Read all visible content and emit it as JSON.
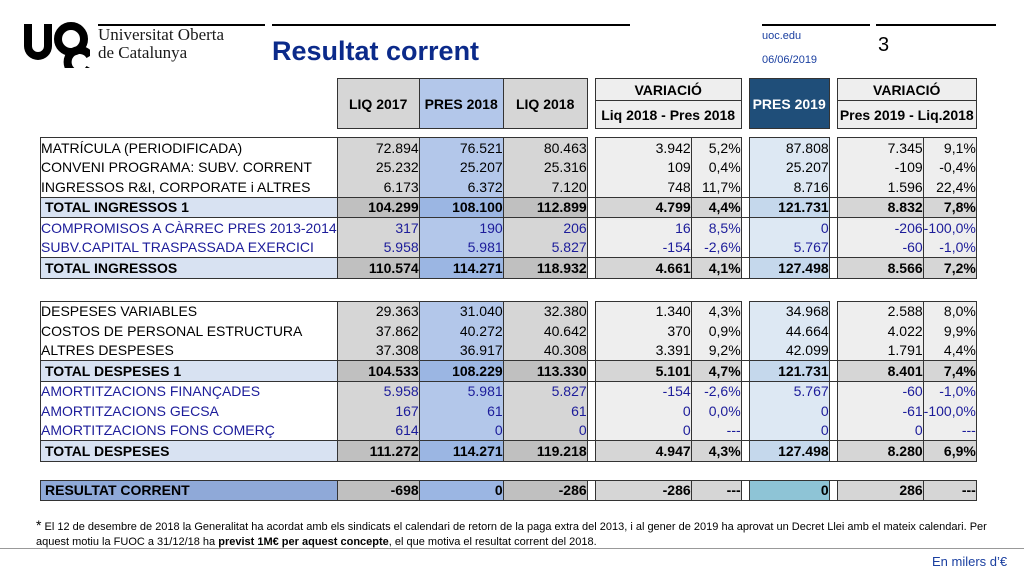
{
  "header": {
    "university_line1": "Universitat Oberta",
    "university_line2": "de Catalunya",
    "title": "Resultat corrent",
    "site": "uoc.edu",
    "date": "06/06/2019",
    "page_number": "3"
  },
  "columns": {
    "liq2017": "LIQ 2017",
    "pres2018": "PRES 2018",
    "liq2018": "LIQ 2018",
    "variacio1": "VARIACIÓ",
    "variacio1_sub": "Liq 2018 - Pres 2018",
    "pres2019": "PRES 2019",
    "variacio2": "VARIACIÓ",
    "variacio2_sub": "Pres 2019 - Liq.2018"
  },
  "rows": [
    {
      "label": "MATRÍCULA (PERIODIFICADA)",
      "liq17": "72.894",
      "pres18": "76.521",
      "liq18": "80.463",
      "var": "3.942",
      "var_pct": "5,2%",
      "pres19": "87.808",
      "var2": "7.345",
      "var2_pct": "9,1%"
    },
    {
      "label": "CONVENI PROGRAMA: SUBV. CORRENT",
      "liq17": "25.232",
      "pres18": "25.207",
      "liq18": "25.316",
      "var": "109",
      "var_pct": "0,4%",
      "pres19": "25.207",
      "var2": "-109",
      "var2_pct": "-0,4%"
    },
    {
      "label": "INGRESSOS R&I, CORPORATE i ALTRES",
      "liq17": "6.173",
      "pres18": "6.372",
      "liq18": "7.120",
      "var": "748",
      "var_pct": "11,7%",
      "pres19": "8.716",
      "var2": "1.596",
      "var2_pct": "22,4%"
    },
    {
      "label": "TOTAL INGRESSOS 1",
      "liq17": "104.299",
      "pres18": "108.100",
      "liq18": "112.899",
      "var": "4.799",
      "var_pct": "4,4%",
      "pres19": "121.731",
      "var2": "8.832",
      "var2_pct": "7,8%"
    },
    {
      "label": "COMPROMISOS A CÀRREC PRES 2013-2014",
      "liq17": "317",
      "pres18": "190",
      "liq18": "206",
      "var": "16",
      "var_pct": "8,5%",
      "pres19": "0",
      "var2": "-206",
      "var2_pct": "-100,0%"
    },
    {
      "label": "SUBV.CAPITAL TRASPASSADA EXERCICI",
      "liq17": "5.958",
      "pres18": "5.981",
      "liq18": "5.827",
      "var": "-154",
      "var_pct": "-2,6%",
      "pres19": "5.767",
      "var2": "-60",
      "var2_pct": "-1,0%"
    },
    {
      "label": "TOTAL INGRESSOS",
      "liq17": "110.574",
      "pres18": "114.271",
      "liq18": "118.932",
      "var": "4.661",
      "var_pct": "4,1%",
      "pres19": "127.498",
      "var2": "8.566",
      "var2_pct": "7,2%"
    },
    {
      "label": "DESPESES VARIABLES",
      "liq17": "29.363",
      "pres18": "31.040",
      "liq18": "32.380",
      "var": "1.340",
      "var_pct": "4,3%",
      "pres19": "34.968",
      "var2": "2.588",
      "var2_pct": "8,0%"
    },
    {
      "label": "COSTOS DE PERSONAL ESTRUCTURA",
      "liq17": "37.862",
      "pres18": "40.272",
      "liq18": "40.642",
      "var": "370",
      "var_pct": "0,9%",
      "pres19": "44.664",
      "var2": "4.022",
      "var2_pct": "9,9%"
    },
    {
      "label": "ALTRES DESPESES",
      "liq17": "37.308",
      "pres18": "36.917",
      "liq18": "40.308",
      "var": "3.391",
      "var_pct": "9,2%",
      "pres19": "42.099",
      "var2": "1.791",
      "var2_pct": "4,4%"
    },
    {
      "label": "TOTAL DESPESES 1",
      "liq17": "104.533",
      "pres18": "108.229",
      "liq18": "113.330",
      "var": "5.101",
      "var_pct": "4,7%",
      "pres19": "121.731",
      "var2": "8.401",
      "var2_pct": "7,4%"
    },
    {
      "label": "AMORTITZACIONS FINANÇADES",
      "liq17": "5.958",
      "pres18": "5.981",
      "liq18": "5.827",
      "var": "-154",
      "var_pct": "-2,6%",
      "pres19": "5.767",
      "var2": "-60",
      "var2_pct": "-1,0%"
    },
    {
      "label": "AMORTITZACIONS GECSA",
      "liq17": "167",
      "pres18": "61",
      "liq18": "61",
      "var": "0",
      "var_pct": "0,0%",
      "pres19": "0",
      "var2": "-61",
      "var2_pct": "-100,0%"
    },
    {
      "label": "AMORTITZACIONS FONS COMERÇ",
      "liq17": "614",
      "pres18": "0",
      "liq18": "0",
      "var": "0",
      "var_pct": "---",
      "pres19": "0",
      "var2": "0",
      "var2_pct": "---"
    },
    {
      "label": "TOTAL DESPESES",
      "liq17": "111.272",
      "pres18": "114.271",
      "liq18": "119.218",
      "var": "4.947",
      "var_pct": "4,3%",
      "pres19": "127.498",
      "var2": "8.280",
      "var2_pct": "6,9%"
    },
    {
      "label": "RESULTAT CORRENT",
      "liq17": "-698",
      "pres18": "0",
      "liq18": "-286",
      "var": "-286",
      "var_pct": "---",
      "pres19": "0",
      "var2": "286",
      "var2_pct": "---"
    }
  ],
  "footnote": {
    "marker": "*",
    "text_a": " El 12 de desembre de 2018 la Generalitat ha acordat amb els sindicats el calendari de retorn de la paga extra del 2013, i al gener de 2019 ha aprovat un Decret Llei amb el mateix calendari. Per aquest motiu la FUOC a 31/12/18 ha ",
    "bold": "previst 1M€ per aquest concepte",
    "text_b": ", el que motiva el resultat corrent del 2018."
  },
  "units": "En milers d’€",
  "colors": {
    "title": "#0b2a8a",
    "pres2019_header": "#1f4e79",
    "blue_rows": "#1c1c9a"
  }
}
